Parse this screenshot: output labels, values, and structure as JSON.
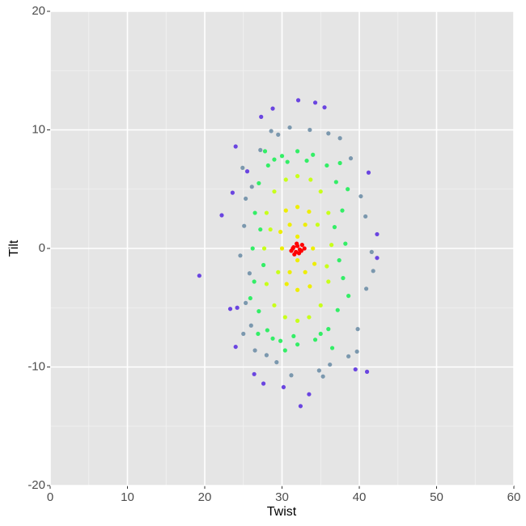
{
  "chart_data": {
    "type": "scatter",
    "xlabel": "Twist",
    "ylabel": "Tilt",
    "xlim": [
      0,
      60
    ],
    "ylim": [
      -20,
      20
    ],
    "xticks": [
      0,
      10,
      20,
      30,
      40,
      50,
      60
    ],
    "yticks": [
      -20,
      -10,
      0,
      10,
      20
    ],
    "xminor": [
      5,
      15,
      25,
      35,
      45,
      55
    ],
    "yminor": [
      -15,
      -5,
      5,
      15
    ],
    "grid": true,
    "series": [
      {
        "color": "#6a45e0",
        "x": [
          19.3,
          24,
          25.5,
          28.8,
          27.3,
          32.1,
          34.3,
          35.5,
          41.2,
          42.3,
          42.3,
          41,
          39.5,
          32.4,
          33.5,
          30.2,
          27.6,
          26.4,
          24,
          23.3,
          22.2,
          23.6,
          24.2
        ],
        "y": [
          -2.3,
          8.6,
          6.5,
          11.8,
          11.1,
          12.5,
          12.3,
          11.9,
          6.4,
          1.2,
          -0.8,
          -10.4,
          -10.2,
          -13.3,
          -12.3,
          -11.7,
          -11.4,
          -10.6,
          -8.3,
          -5.1,
          2.8,
          4.7,
          -5
        ]
      },
      {
        "color": "#7b98ae",
        "x": [
          25.3,
          25.8,
          26,
          27.2,
          29.5,
          31,
          33.6,
          36,
          37.5,
          38.9,
          40.2,
          40.8,
          41.6,
          40.9,
          39.8,
          38.6,
          36.2,
          34.8,
          31.2,
          29.3,
          28,
          26.5,
          25,
          25.3,
          24.6,
          25.1,
          26.1,
          24.9,
          41.8,
          39.7,
          35.3,
          28.6
        ],
        "y": [
          4.2,
          -2.1,
          -6.5,
          8.3,
          9.6,
          10.2,
          10,
          9.7,
          9.3,
          7.6,
          4.4,
          2.7,
          -0.3,
          -3.4,
          -6.8,
          -9.1,
          -9.8,
          -10.3,
          -10.7,
          -9.6,
          -9,
          -8.6,
          -7.2,
          -4.6,
          -0.6,
          1.9,
          5.2,
          6.8,
          -1.9,
          -8.7,
          -10.8,
          9.9
        ]
      },
      {
        "color": "#33ee66",
        "x": [
          26.2,
          26.5,
          27,
          28.2,
          30,
          32,
          34,
          35.8,
          37,
          37.8,
          38.2,
          37.9,
          37.2,
          36,
          34.3,
          32,
          29.8,
          28.1,
          27,
          26.4,
          27.2,
          27.6,
          36.8,
          37.4,
          30.7,
          33.2,
          31.5,
          35,
          28.8,
          29,
          38.6,
          25.9,
          38.5,
          26.9,
          37.5,
          27.8,
          36.5,
          30.4
        ],
        "y": [
          0,
          3,
          5.5,
          7,
          7.8,
          8.2,
          7.9,
          7,
          5.6,
          3.2,
          0.4,
          -2.5,
          -5.2,
          -6.8,
          -7.7,
          -8.1,
          -7.8,
          -6.9,
          -5.3,
          -2.8,
          1.6,
          -1.4,
          1.8,
          -1,
          7.3,
          7.4,
          -7.4,
          -7.2,
          -7.6,
          7.5,
          -4,
          -4.2,
          5,
          -7.2,
          7.2,
          8.2,
          -8.4,
          -8.6
        ]
      },
      {
        "color": "#c8ff1a",
        "x": [
          27.7,
          28,
          29,
          30.5,
          32,
          33.7,
          35,
          36,
          36.4,
          36,
          35,
          33.5,
          32,
          30.4,
          29,
          28,
          28.5,
          35.8,
          29.5,
          34.6
        ],
        "y": [
          0,
          3,
          4.8,
          5.8,
          6.1,
          5.8,
          4.8,
          3,
          0.3,
          -2.8,
          -4.8,
          -5.8,
          -6.1,
          -5.8,
          -4.8,
          -3,
          1.6,
          -1.5,
          -2,
          2
        ]
      },
      {
        "color": "#eeee00",
        "x": [
          30,
          31,
          32,
          33,
          34,
          33,
          32,
          31,
          32,
          32,
          30.5,
          33.5,
          30.6,
          33.6,
          29.8,
          34.2
        ],
        "y": [
          0,
          2,
          3.5,
          2,
          0,
          -2,
          -3.5,
          -2,
          1,
          -1,
          3.2,
          3.1,
          -3,
          -3.2,
          1.4,
          -1.3
        ]
      },
      {
        "color": "#ff0000",
        "x": [
          31.2,
          31.5,
          31.8,
          32,
          32.3,
          32.6,
          32.9,
          31.6,
          32.2,
          31.9,
          32.5,
          31.4
        ],
        "y": [
          -0.2,
          0.1,
          -0.3,
          0.2,
          -0.1,
          0.3,
          0,
          -0.5,
          -0.4,
          0.4,
          -0.2,
          0
        ]
      }
    ]
  }
}
